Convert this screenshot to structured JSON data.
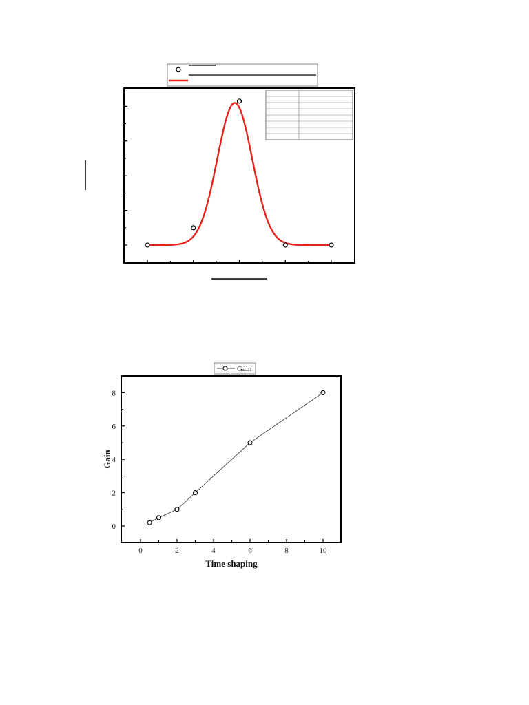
{
  "chart_data": [
    {
      "type": "scatter",
      "title": "",
      "xlabel": "",
      "ylabel": "",
      "xlim": [
        -0.5,
        4.5
      ],
      "ylim": [
        -1,
        9
      ],
      "x_ticks": [
        0,
        1,
        2,
        3,
        4
      ],
      "y_ticks": [
        0,
        2,
        4,
        6,
        8
      ],
      "show_tick_labels": false,
      "legend": {
        "placement": "top-center",
        "entries": [
          "",
          ""
        ]
      },
      "fit_table": {
        "placement": "top-right",
        "rows": 8,
        "columns": 2
      },
      "series": [
        {
          "kind": "points",
          "x": [
            0,
            1,
            2,
            3,
            4
          ],
          "y": [
            0,
            1,
            8.3,
            0,
            0
          ],
          "color": "#000000",
          "marker": "open-circle"
        },
        {
          "kind": "gaussian-fit",
          "baseline": 0,
          "amplitude": 8.2,
          "center": 1.9,
          "sigma": 0.38,
          "color": "#e8211a"
        }
      ]
    },
    {
      "type": "line",
      "title": "",
      "xlabel": "Time shaping",
      "ylabel": "Gain",
      "xlim": [
        -1,
        11
      ],
      "ylim": [
        -1,
        9
      ],
      "x_ticks": [
        0,
        2,
        4,
        6,
        8,
        10
      ],
      "y_ticks": [
        0,
        2,
        4,
        6,
        8
      ],
      "grid": false,
      "legend": {
        "placement": "top-center"
      },
      "series": [
        {
          "name": "Gain",
          "x": [
            0.5,
            1,
            2,
            3,
            6,
            10
          ],
          "y": [
            0.2,
            0.5,
            1,
            2,
            5,
            8
          ],
          "color": "#444444",
          "marker": "open-circle"
        }
      ]
    }
  ]
}
